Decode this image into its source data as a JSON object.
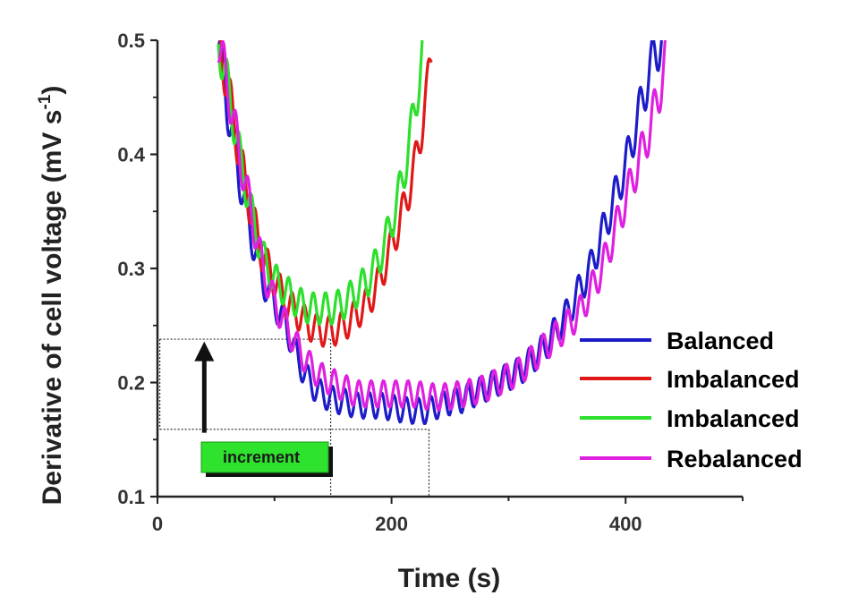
{
  "chart_data": {
    "type": "line",
    "xlabel": "Time (s)",
    "ylabel_main": "Derivative of cell voltage (mV s",
    "ylabel_sup": "-1",
    "ylabel_close": ")",
    "xlim": [
      0,
      500
    ],
    "ylim": [
      0.1,
      0.5
    ],
    "xticks": [
      0,
      200,
      400
    ],
    "xtick_labels": [
      "0",
      "200",
      "400"
    ],
    "yticks": [
      0.1,
      0.2,
      0.3,
      0.4,
      0.5
    ],
    "ytick_labels": [
      "0.1",
      "0.2",
      "0.3",
      "0.4",
      "0.5"
    ],
    "grid": false,
    "legend_position": "bottom-right",
    "series": [
      {
        "name": "Balanced",
        "color": "#1c1cc8",
        "x": [
          52,
          60,
          70,
          80,
          90,
          100,
          110,
          120,
          130,
          140,
          150,
          160,
          170,
          180,
          190,
          200,
          210,
          220,
          230,
          240,
          250,
          260,
          270,
          280,
          290,
          300,
          310,
          320,
          330,
          340,
          350,
          360,
          370,
          380,
          390,
          400,
          410,
          420,
          425,
          432
        ],
        "y": [
          0.5,
          0.44,
          0.38,
          0.33,
          0.29,
          0.27,
          0.25,
          0.22,
          0.2,
          0.19,
          0.185,
          0.183,
          0.18,
          0.18,
          0.18,
          0.178,
          0.176,
          0.175,
          0.175,
          0.18,
          0.183,
          0.185,
          0.19,
          0.195,
          0.2,
          0.205,
          0.21,
          0.22,
          0.23,
          0.245,
          0.26,
          0.28,
          0.3,
          0.33,
          0.36,
          0.39,
          0.43,
          0.47,
          0.49,
          0.5
        ]
      },
      {
        "name": "Imbalanced",
        "color": "#e01818",
        "x": [
          52,
          60,
          70,
          80,
          90,
          100,
          110,
          120,
          130,
          140,
          150,
          160,
          170,
          180,
          190,
          200,
          210,
          220,
          230,
          235
        ],
        "y": [
          0.5,
          0.46,
          0.4,
          0.35,
          0.31,
          0.29,
          0.27,
          0.26,
          0.25,
          0.245,
          0.245,
          0.25,
          0.26,
          0.27,
          0.29,
          0.32,
          0.35,
          0.39,
          0.45,
          0.5
        ]
      },
      {
        "name": "Imbalanced",
        "color": "#2ce02c",
        "x": [
          52,
          60,
          70,
          80,
          90,
          100,
          110,
          120,
          130,
          140,
          150,
          160,
          170,
          180,
          190,
          200,
          210,
          220,
          228
        ],
        "y": [
          0.5,
          0.46,
          0.4,
          0.35,
          0.31,
          0.29,
          0.28,
          0.27,
          0.265,
          0.265,
          0.265,
          0.27,
          0.28,
          0.29,
          0.31,
          0.34,
          0.38,
          0.44,
          0.5
        ]
      },
      {
        "name": "Rebalanced",
        "color": "#e020e0",
        "x": [
          52,
          60,
          70,
          80,
          90,
          100,
          110,
          120,
          130,
          140,
          150,
          160,
          170,
          180,
          190,
          200,
          210,
          220,
          230,
          240,
          250,
          260,
          270,
          280,
          290,
          300,
          310,
          320,
          330,
          340,
          350,
          360,
          370,
          380,
          390,
          400,
          410,
          420,
          430,
          437
        ],
        "y": [
          0.5,
          0.46,
          0.4,
          0.35,
          0.3,
          0.27,
          0.25,
          0.23,
          0.215,
          0.205,
          0.2,
          0.195,
          0.19,
          0.19,
          0.19,
          0.19,
          0.19,
          0.19,
          0.188,
          0.187,
          0.188,
          0.19,
          0.192,
          0.195,
          0.2,
          0.205,
          0.21,
          0.22,
          0.23,
          0.24,
          0.25,
          0.26,
          0.28,
          0.3,
          0.33,
          0.36,
          0.39,
          0.42,
          0.46,
          0.5
        ]
      }
    ],
    "annotations": {
      "increment_label": "increment",
      "hlines": [
        0.238,
        0.159
      ],
      "vlines": [
        148,
        232
      ],
      "arrow": {
        "x": 40,
        "from": 0.156,
        "to": 0.236
      }
    }
  }
}
